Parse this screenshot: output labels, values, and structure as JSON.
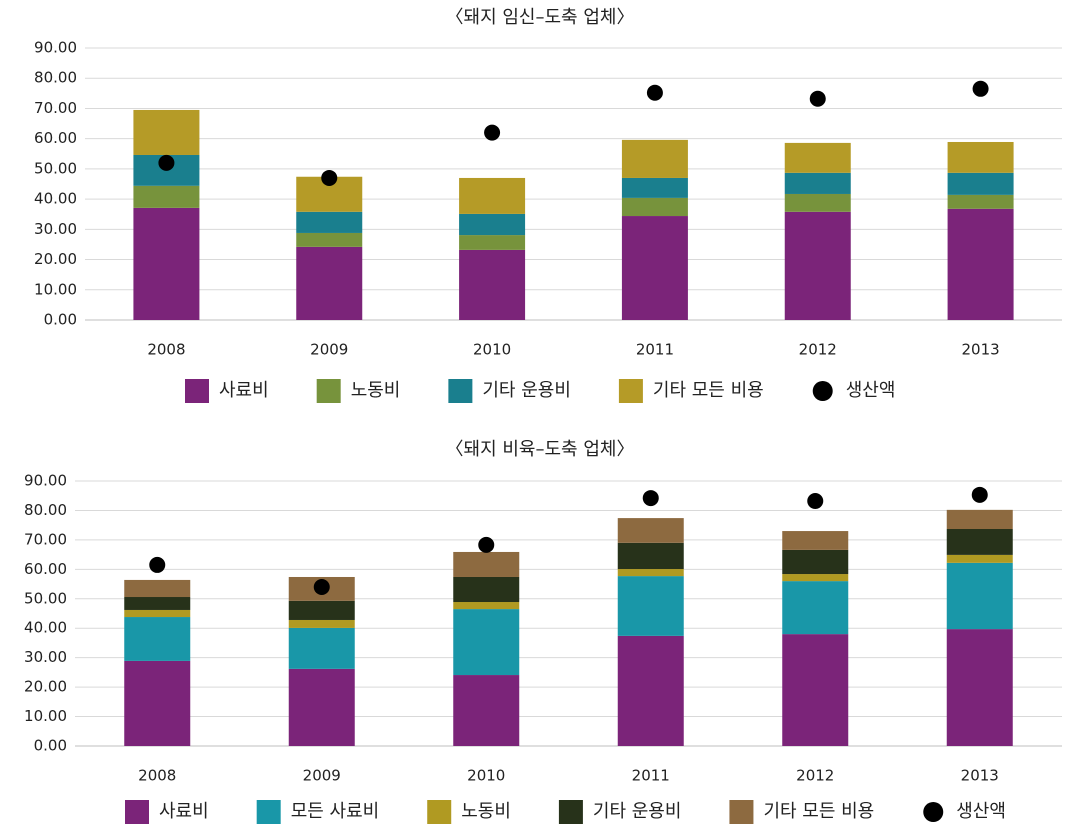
{
  "chart_data": [
    {
      "type": "bar",
      "stacked": true,
      "title": "〈돼지 임신–도축 업체〉",
      "categories": [
        "2008",
        "2009",
        "2010",
        "2011",
        "2012",
        "2013"
      ],
      "ylim": [
        0,
        90
      ],
      "yticks": [
        {
          "value": 0,
          "label": "0.00"
        },
        {
          "value": 10,
          "label": "10.00"
        },
        {
          "value": 20,
          "label": "20.00"
        },
        {
          "value": 30,
          "label": "30.00"
        },
        {
          "value": 40,
          "label": "40.00"
        },
        {
          "value": 50,
          "label": "50.00"
        },
        {
          "value": 60,
          "label": "60.00"
        },
        {
          "value": 70,
          "label": "70.00"
        },
        {
          "value": 80,
          "label": "80.00"
        },
        {
          "value": 90,
          "label": "90.00"
        }
      ],
      "grid": true,
      "series": [
        {
          "name": "사료비",
          "color": "#7b2479",
          "values": [
            37.1,
            24.2,
            23.2,
            34.4,
            35.8,
            36.8
          ]
        },
        {
          "name": "노동비",
          "color": "#77933c",
          "values": [
            7.3,
            4.6,
            4.9,
            6.0,
            5.9,
            4.6
          ]
        },
        {
          "name": "기타 운용비",
          "color": "#1a7f8e",
          "values": [
            10.2,
            7.0,
            7.0,
            6.6,
            7.0,
            7.3
          ]
        },
        {
          "name": "기타 모든 비용",
          "color": "#b59b27",
          "values": [
            14.9,
            11.6,
            11.9,
            12.6,
            9.9,
            10.2
          ]
        },
        {
          "name": "생산액",
          "color": "#000000",
          "type": "scatter",
          "values": [
            52.0,
            47.0,
            62.0,
            75.2,
            73.2,
            76.5
          ]
        }
      ]
    },
    {
      "type": "bar",
      "stacked": true,
      "title": "〈돼지 비육–도축 업체〉",
      "categories": [
        "2008",
        "2009",
        "2010",
        "2011",
        "2012",
        "2013"
      ],
      "ylim": [
        0,
        90
      ],
      "yticks": [
        {
          "value": 0,
          "label": "0.00"
        },
        {
          "value": 10,
          "label": "10.00"
        },
        {
          "value": 20,
          "label": "20.00"
        },
        {
          "value": 30,
          "label": "30.00"
        },
        {
          "value": 40,
          "label": "40.00"
        },
        {
          "value": 50,
          "label": "50.00"
        },
        {
          "value": 60,
          "label": "60.00"
        },
        {
          "value": 70,
          "label": "70.00"
        },
        {
          "value": 80,
          "label": "80.00"
        },
        {
          "value": 90,
          "label": "90.00"
        }
      ],
      "grid": true,
      "series": [
        {
          "name": "사료비",
          "color": "#7b2479",
          "values": [
            28.9,
            26.2,
            24.1,
            37.4,
            38.0,
            39.7
          ]
        },
        {
          "name": "모든 사료비",
          "color": "#1997a8",
          "values": [
            14.9,
            13.9,
            22.4,
            20.3,
            18.0,
            22.5
          ]
        },
        {
          "name": "노동비",
          "color": "#b09a22",
          "values": [
            2.4,
            2.7,
            2.4,
            2.4,
            2.4,
            2.7
          ]
        },
        {
          "name": "기타 운용비",
          "color": "#27321a",
          "values": [
            4.4,
            6.5,
            8.5,
            8.9,
            8.2,
            8.8
          ]
        },
        {
          "name": "기타 모든 비용",
          "color": "#8d6a40",
          "values": [
            5.8,
            8.1,
            8.5,
            8.4,
            6.4,
            6.5
          ]
        },
        {
          "name": "생산액",
          "color": "#000000",
          "type": "scatter",
          "values": [
            61.5,
            54.0,
            68.3,
            84.2,
            83.2,
            85.3
          ]
        }
      ]
    }
  ]
}
